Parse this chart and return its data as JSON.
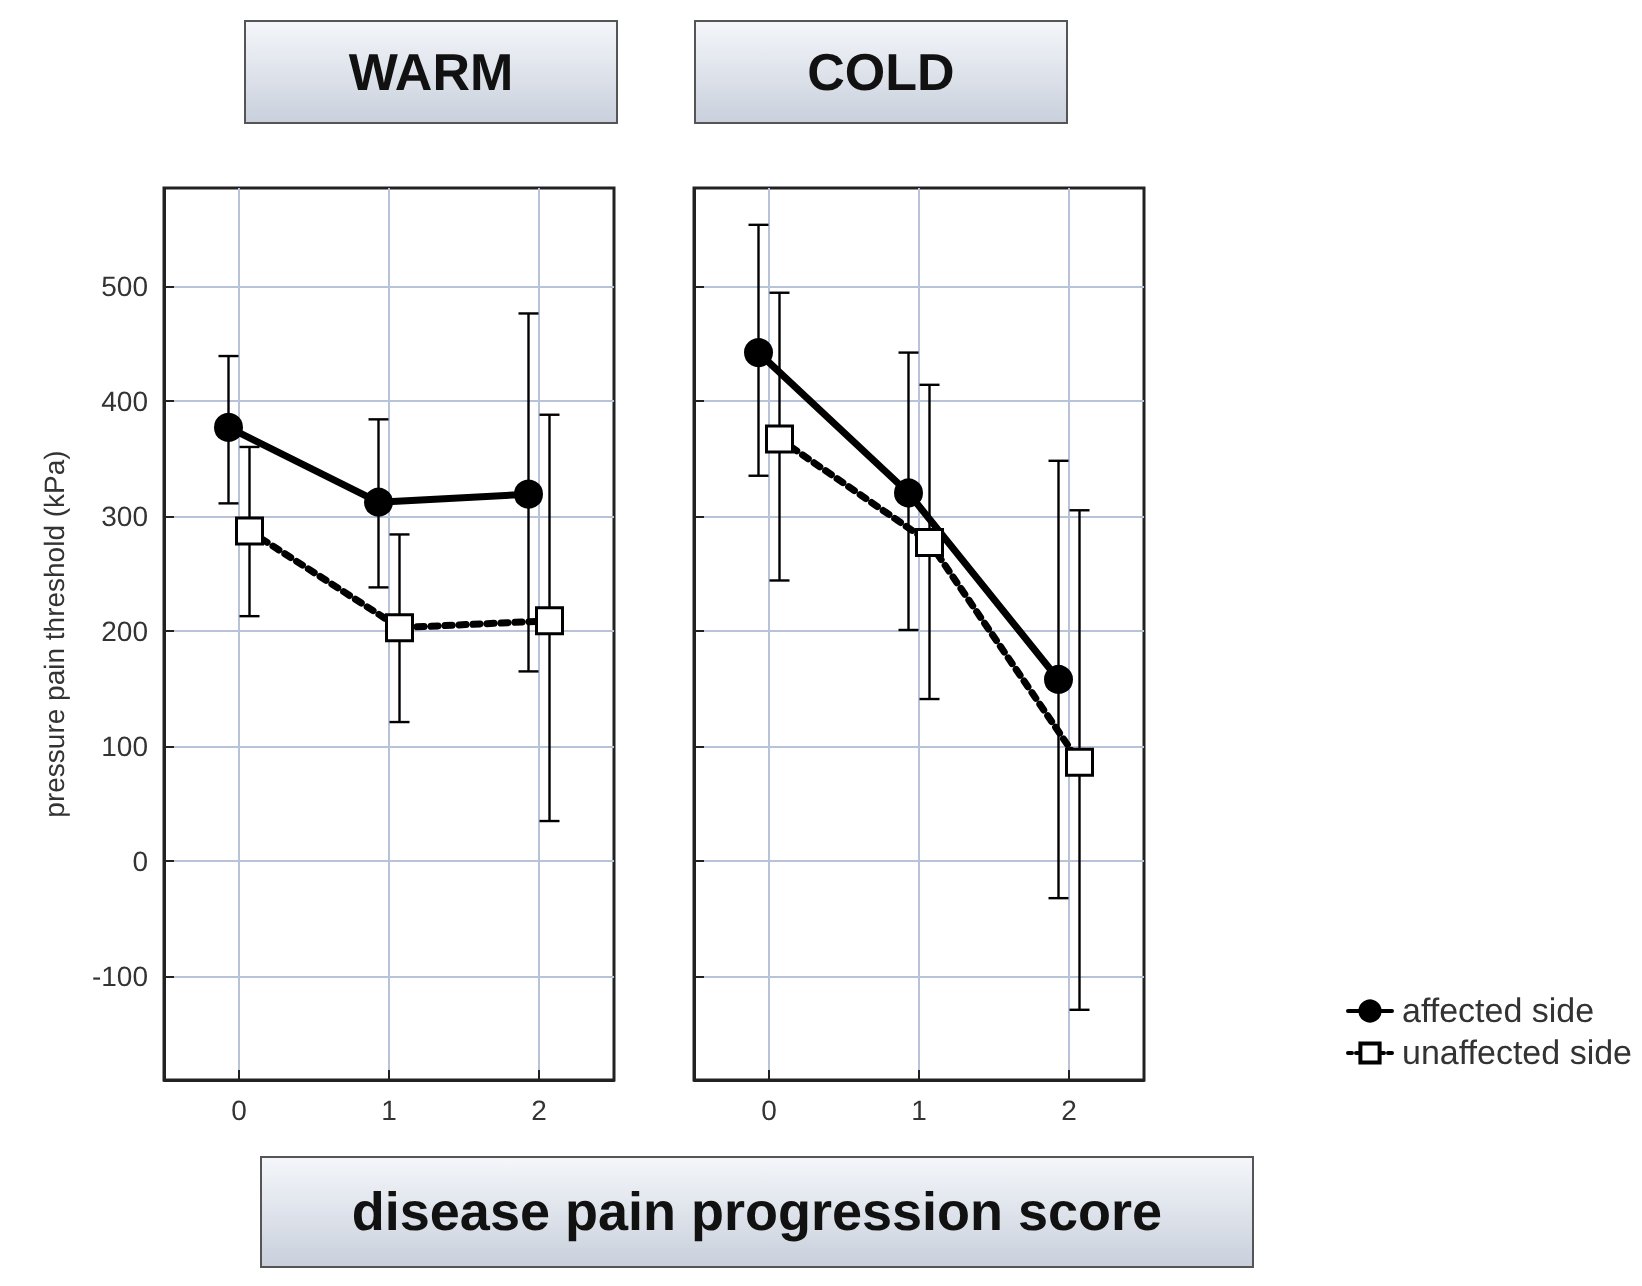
{
  "chart_data": [
    {
      "type": "line",
      "title": "WARM",
      "xlabel": "disease pain progression score",
      "ylabel": "pressure pain threshold (kPa)",
      "xlim": [
        -0.5,
        2.5
      ],
      "xticks": [
        0,
        1,
        2
      ],
      "ylim": [
        -190,
        585
      ],
      "yticks": [
        -100,
        0,
        100,
        200,
        300,
        400,
        500
      ],
      "grid": true,
      "series": [
        {
          "color": "#000000",
          "marker": "circle",
          "line_style": "solid",
          "x": [
            -0.07,
            0.93,
            1.93
          ],
          "values": [
            377,
            312,
            319
          ],
          "errors": [
            [
              311,
              439
            ],
            [
              238,
              384
            ],
            [
              165,
              476
            ]
          ]
        },
        {
          "color": "#000000",
          "marker": "square",
          "line_style": "dotted",
          "x": [
            0.07,
            1.07,
            2.07
          ],
          "values": [
            287,
            203,
            209
          ],
          "errors": [
            [
              213,
              360
            ],
            [
              121,
              284
            ],
            [
              35,
              388
            ]
          ]
        }
      ]
    },
    {
      "type": "line",
      "title": "COLD",
      "xlim": [
        -0.5,
        2.5
      ],
      "xticks": [
        0,
        1,
        2
      ],
      "ylim": [
        -190,
        585
      ],
      "yticks": [
        -100,
        0,
        100,
        200,
        300,
        400,
        500
      ],
      "grid": true,
      "tick_labels": "x",
      "legend": "bottom right",
      "series": [
        {
          "name": "affected side",
          "color": "#000000",
          "marker": "circle",
          "line_style": "solid",
          "x": [
            -0.07,
            0.93,
            1.93
          ],
          "values": [
            442,
            320,
            158
          ],
          "errors": [
            [
              335,
              553
            ],
            [
              201,
              442
            ],
            [
              -32,
              348
            ]
          ]
        },
        {
          "name": "unaffected side",
          "color": "#000000",
          "marker": "square",
          "line_style": "dotted",
          "x": [
            0.07,
            1.07,
            2.07
          ],
          "values": [
            367,
            277,
            86
          ],
          "errors": [
            [
              244,
              494
            ],
            [
              141,
              414
            ],
            [
              -129,
              305
            ]
          ]
        }
      ]
    }
  ]
}
